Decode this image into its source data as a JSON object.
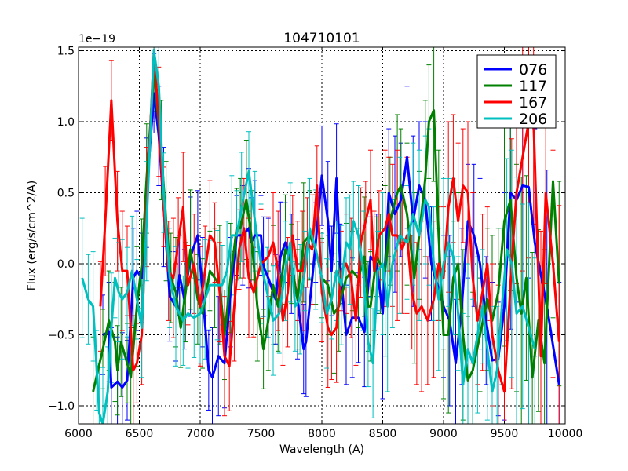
{
  "chart_data": {
    "type": "line",
    "title": "104710101",
    "xlabel": "Wavelength (A)",
    "ylabel": "Flux (erg/s/cm^2/A)",
    "offset_text": "1e−19",
    "xlim": [
      6000,
      10000
    ],
    "ylim": [
      -1.127,
      1.525
    ],
    "xticks": [
      6000,
      6500,
      7000,
      7500,
      8000,
      8500,
      9000,
      9500,
      10000
    ],
    "xtick_labels": [
      "6000",
      "6500",
      "7000",
      "7500",
      "8000",
      "8500",
      "9000",
      "9500",
      "10000"
    ],
    "yticks": [
      -1.0,
      -0.5,
      0.0,
      0.5,
      1.0,
      1.5
    ],
    "ytick_labels": [
      "−1.0",
      "−0.5",
      "0.0",
      "0.5",
      "1.0",
      "1.5"
    ],
    "grid": true,
    "legend_position": "top-right",
    "yerr_by_range": [
      [
        6000,
        6500,
        0.35
      ],
      [
        6500,
        8500,
        0.35
      ],
      [
        8500,
        9500,
        0.5
      ],
      [
        9500,
        10000,
        0.8
      ]
    ],
    "series": [
      {
        "name": "076",
        "color": "#0000ff",
        "x": [
          6200,
          6250,
          6270,
          6320,
          6360,
          6400,
          6450,
          6480,
          6520,
          6560,
          6620,
          6660,
          6700,
          6750,
          6800,
          6830,
          6870,
          6920,
          6980,
          7020,
          7070,
          7100,
          7150,
          7200,
          7250,
          7300,
          7350,
          7400,
          7420,
          7450,
          7500,
          7520,
          7560,
          7620,
          7660,
          7700,
          7750,
          7800,
          7850,
          7870,
          7950,
          8000,
          8050,
          8080,
          8120,
          8150,
          8200,
          8250,
          8300,
          8350,
          8400,
          8450,
          8500,
          8550,
          8600,
          8650,
          8700,
          8750,
          8800,
          8850,
          8900,
          9000,
          9050,
          9100,
          9150,
          9200,
          9250,
          9300,
          9350,
          9400,
          9450,
          9500,
          9550,
          9600,
          9650,
          9700,
          9750,
          9850,
          9950
        ],
        "y": [
          -0.5,
          -0.48,
          -0.87,
          -0.83,
          -0.87,
          -0.82,
          -0.1,
          -0.05,
          -0.1,
          0.5,
          1.2,
          0.9,
          0.4,
          -0.23,
          -0.3,
          -0.08,
          -0.25,
          0.05,
          0.2,
          -0.2,
          -0.75,
          -0.8,
          -0.65,
          -0.7,
          -0.2,
          0.2,
          0.2,
          0.25,
          0.15,
          0.2,
          0.2,
          -0.02,
          -0.1,
          -0.25,
          0.05,
          0.15,
          0.0,
          -0.25,
          -0.6,
          -0.55,
          0.15,
          0.62,
          0.3,
          -0.05,
          0.6,
          0.0,
          -0.5,
          -0.38,
          -0.38,
          -0.48,
          0.05,
          0.0,
          -0.35,
          0.5,
          0.35,
          0.45,
          0.75,
          0.3,
          0.55,
          0.45,
          0.0,
          -0.3,
          -0.4,
          -0.7,
          -0.3,
          0.3,
          0.2,
          0.0,
          -0.4,
          -0.68,
          -0.67,
          -0.3,
          0.5,
          0.45,
          0.55,
          0.54,
          0.15,
          -0.3,
          -0.85
        ]
      },
      {
        "name": "117",
        "color": "#008000",
        "x": [
          6120,
          6200,
          6250,
          6300,
          6320,
          6350,
          6400,
          6430,
          6480,
          6520,
          6560,
          6620,
          6680,
          6720,
          6760,
          6800,
          6840,
          6880,
          6920,
          6980,
          7020,
          7080,
          7120,
          7160,
          7200,
          7250,
          7300,
          7330,
          7380,
          7420,
          7470,
          7520,
          7560,
          7600,
          7640,
          7700,
          7750,
          7800,
          7850,
          7900,
          7950,
          8000,
          8050,
          8100,
          8140,
          8200,
          8250,
          8300,
          8350,
          8380,
          8400,
          8450,
          8480,
          8520,
          8560,
          8620,
          8650,
          8700,
          8760,
          8800,
          8850,
          8880,
          8920,
          8960,
          9000,
          9040,
          9080,
          9120,
          9160,
          9200,
          9240,
          9300,
          9360,
          9400,
          9450,
          9500,
          9550,
          9600,
          9640,
          9680,
          9730,
          9780,
          9830,
          9900,
          9950
        ],
        "y": [
          -0.9,
          -0.6,
          -0.4,
          -0.55,
          -0.75,
          -0.55,
          -0.7,
          -0.8,
          -0.3,
          0.0,
          0.6,
          1.35,
          0.8,
          0.3,
          -0.1,
          -0.2,
          -0.45,
          -0.2,
          0.1,
          -0.25,
          -0.35,
          -0.05,
          -0.1,
          -0.15,
          -0.5,
          -0.1,
          0.25,
          0.25,
          0.45,
          0.2,
          -0.3,
          -0.6,
          -0.4,
          -0.15,
          -0.3,
          0.1,
          0.0,
          -0.25,
          0.15,
          0.2,
          0.1,
          -0.1,
          -0.15,
          -0.35,
          -0.3,
          -0.1,
          -0.05,
          -0.1,
          0.05,
          -0.3,
          -0.3,
          0.05,
          0.0,
          -0.05,
          0.3,
          0.5,
          0.55,
          0.35,
          -0.1,
          0.2,
          0.6,
          1.0,
          1.08,
          0.2,
          -0.5,
          -0.5,
          -0.1,
          0.0,
          -0.5,
          -0.82,
          -0.75,
          -0.5,
          -0.25,
          -0.4,
          -0.2,
          0.3,
          0.45,
          -0.1,
          -0.35,
          -0.1,
          -0.8,
          -0.4,
          -0.7,
          0.58,
          -0.14
        ]
      },
      {
        "name": "167",
        "color": "#ff0000",
        "x": [
          6180,
          6220,
          6270,
          6320,
          6360,
          6400,
          6450,
          6480,
          6520,
          6560,
          6620,
          6660,
          6700,
          6740,
          6780,
          6820,
          6860,
          6900,
          6950,
          7000,
          7040,
          7080,
          7120,
          7160,
          7200,
          7240,
          7280,
          7320,
          7360,
          7400,
          7440,
          7500,
          7560,
          7600,
          7640,
          7680,
          7720,
          7760,
          7800,
          7840,
          7880,
          7920,
          7960,
          8000,
          8050,
          8080,
          8120,
          8160,
          8200,
          8240,
          8280,
          8320,
          8360,
          8400,
          8430,
          8470,
          8520,
          8550,
          8580,
          8620,
          8660,
          8700,
          8740,
          8780,
          8820,
          8870,
          8920,
          8960,
          9000,
          9040,
          9080,
          9120,
          9160,
          9200,
          9240,
          9280,
          9320,
          9360,
          9400,
          9450,
          9500,
          9560,
          9600,
          9650,
          9700,
          9740,
          9800,
          9840,
          9900,
          9950
        ],
        "y": [
          -0.3,
          0.3,
          1.15,
          0.3,
          -0.05,
          -0.05,
          -0.75,
          -0.7,
          -0.5,
          0.4,
          1.5,
          1.0,
          0.4,
          -0.05,
          -0.1,
          0.15,
          0.4,
          -0.15,
          0.0,
          -0.3,
          -0.05,
          0.2,
          0.15,
          -0.2,
          -0.65,
          -0.72,
          -0.3,
          0.1,
          0.25,
          -0.1,
          -0.2,
          0.0,
          0.05,
          0.15,
          -0.05,
          -0.4,
          -0.2,
          0.2,
          -0.05,
          -0.05,
          0.15,
          0.1,
          0.55,
          -0.2,
          -0.45,
          -0.5,
          -0.45,
          -0.05,
          0.0,
          -0.1,
          -0.4,
          0.15,
          0.3,
          0.45,
          -0.05,
          0.2,
          0.25,
          0.35,
          0.2,
          0.2,
          0.1,
          0.2,
          -0.2,
          -0.35,
          -0.3,
          -0.4,
          -0.25,
          0.0,
          -0.1,
          0.4,
          0.6,
          0.3,
          0.55,
          0.5,
          -0.1,
          -0.4,
          -0.2,
          0.0,
          -0.5,
          -0.75,
          -0.9,
          0.0,
          0.5,
          0.75,
          1.0,
          1.0,
          -0.65,
          0.5,
          0.0,
          -0.55
        ]
      },
      {
        "name": "206",
        "color": "#00bfbf",
        "x": [
          6030,
          6080,
          6120,
          6150,
          6170,
          6200,
          6240,
          6270,
          6300,
          6330,
          6360,
          6400,
          6440,
          6480,
          6520,
          6560,
          6620,
          6660,
          6700,
          6750,
          6800,
          6860,
          6900,
          6950,
          7000,
          7040,
          7080,
          7140,
          7180,
          7220,
          7260,
          7300,
          7340,
          7400,
          7450,
          7500,
          7550,
          7600,
          7650,
          7700,
          7740,
          7780,
          7820,
          7860,
          7900,
          7950,
          8000,
          8040,
          8080,
          8120,
          8160,
          8200,
          8230,
          8260,
          8300,
          8340,
          8380,
          8420,
          8460,
          8500,
          8540,
          8580,
          8640,
          8700,
          8750,
          8800,
          8850,
          8880,
          8920,
          8960,
          9000,
          9040,
          9080,
          9120,
          9160,
          9200,
          9240,
          9280,
          9320,
          9360,
          9400,
          9440,
          9480,
          9520,
          9560,
          9600,
          9650,
          9700,
          9750
        ],
        "y": [
          -0.1,
          -0.25,
          -0.3,
          -0.75,
          -1.05,
          -1.15,
          -0.9,
          -0.45,
          -0.1,
          -0.2,
          -0.25,
          -0.2,
          -0.05,
          -0.25,
          -0.45,
          0.3,
          1.5,
          1.25,
          0.5,
          -0.1,
          -0.3,
          -0.4,
          -0.35,
          -0.38,
          -0.35,
          -0.25,
          -0.15,
          -0.15,
          -0.15,
          -0.05,
          0.2,
          0.2,
          0.4,
          0.65,
          0.3,
          0.0,
          -0.2,
          -0.4,
          -0.35,
          -0.05,
          0.15,
          -0.3,
          -0.25,
          -0.05,
          0.25,
          0.1,
          -0.1,
          -0.35,
          -0.25,
          -0.05,
          -0.15,
          0.15,
          0.1,
          0.3,
          0.2,
          -0.05,
          -0.55,
          -0.7,
          -0.05,
          0.0,
          -0.3,
          0.0,
          0.2,
          0.15,
          0.35,
          0.2,
          0.45,
          0.4,
          0.0,
          -0.25,
          0.0,
          0.15,
          0.05,
          -0.35,
          -0.85,
          -0.6,
          -0.7,
          -0.5,
          -0.3,
          -0.6,
          -0.9,
          -0.75,
          -0.3,
          0.1,
          0.0,
          -0.35,
          -0.3,
          -0.45,
          -0.6
        ]
      }
    ]
  }
}
